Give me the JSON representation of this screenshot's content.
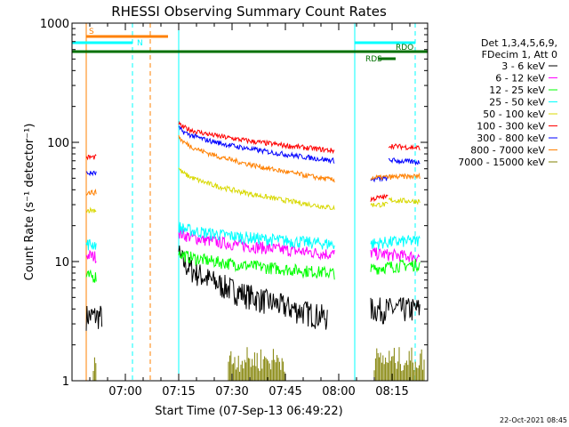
{
  "chart_data": {
    "type": "line",
    "title": "RHESSI Observing Summary Count Rates",
    "xlabel": "Start Time (07-Sep-13 06:49:22)",
    "ylabel": "Count Rate (s⁻¹ detector⁻¹)",
    "y_scale": "log",
    "ylim": [
      1,
      1000
    ],
    "xlim_minutes_after_0649": [
      -4,
      96
    ],
    "y_ticks": [
      {
        "value": 1,
        "label": "1"
      },
      {
        "value": 10,
        "label": "10"
      },
      {
        "value": 100,
        "label": "100"
      },
      {
        "value": 1000,
        "label": "1000"
      }
    ],
    "x_ticks": [
      {
        "value": 11,
        "label": "07:00"
      },
      {
        "value": 26,
        "label": "07:15"
      },
      {
        "value": 41,
        "label": "07:30"
      },
      {
        "value": 56,
        "label": "07:45"
      },
      {
        "value": 71,
        "label": "08:00"
      },
      {
        "value": 86,
        "label": "08:15"
      }
    ],
    "legend_header": [
      "Det 1,3,4,5,6,9,",
      "FDecim 1, Att 0"
    ],
    "legend_position": "right",
    "series": [
      {
        "name": "3 - 6 keV",
        "color": "#000000",
        "noise": 0.25,
        "segments": [
          [
            0,
            3.5,
            3.5,
            4.5
          ],
          [
            26,
            12,
            3.4,
            68
          ],
          [
            80,
            4,
            4,
            94
          ]
        ]
      },
      {
        "name": "6 - 12 keV",
        "color": "#ff00ff",
        "noise": 0.12,
        "segments": [
          [
            0,
            11.5,
            11,
            3
          ],
          [
            26,
            18,
            11.5,
            70
          ],
          [
            80,
            12,
            11,
            94
          ]
        ]
      },
      {
        "name": "12 - 25 keV",
        "color": "#00ff00",
        "noise": 0.12,
        "segments": [
          [
            0,
            7.5,
            7.5,
            3
          ],
          [
            26,
            12,
            8,
            70
          ],
          [
            80,
            8.5,
            9.5,
            94
          ]
        ]
      },
      {
        "name": "25 - 50 keV",
        "color": "#00ffff",
        "noise": 0.12,
        "segments": [
          [
            0,
            14,
            14,
            3
          ],
          [
            26,
            20,
            14,
            70
          ],
          [
            80,
            14,
            15,
            94
          ]
        ]
      },
      {
        "name": "50 - 100 keV",
        "color": "#d8d800",
        "noise": 0.05,
        "segments": [
          [
            0,
            27,
            27,
            3
          ],
          [
            26,
            62,
            28,
            70
          ],
          [
            80,
            30,
            30,
            85
          ],
          [
            85,
            33,
            32,
            94
          ]
        ]
      },
      {
        "name": "100 - 300 keV",
        "color": "#ff0000",
        "noise": 0.05,
        "segments": [
          [
            0,
            75,
            75,
            3
          ],
          [
            26,
            145,
            85,
            70
          ],
          [
            80,
            33,
            35,
            85
          ],
          [
            85,
            95,
            90,
            94
          ]
        ]
      },
      {
        "name": "300 - 800 keV",
        "color": "#0000ff",
        "noise": 0.05,
        "segments": [
          [
            0,
            55,
            55,
            3
          ],
          [
            26,
            135,
            70,
            70
          ],
          [
            80,
            48,
            50,
            85
          ],
          [
            85,
            72,
            68,
            94
          ]
        ]
      },
      {
        "name": "800 - 7000 keV",
        "color": "#ff8000",
        "noise": 0.05,
        "segments": [
          [
            0,
            38,
            38,
            3
          ],
          [
            26,
            115,
            48,
            70
          ],
          [
            80,
            50,
            52,
            94
          ]
        ]
      },
      {
        "name": "7000 - 15000 keV",
        "color": "#808000",
        "noise": 0,
        "segments": []
      }
    ],
    "markers": [
      {
        "label": "S",
        "color": "#ff8000",
        "start": 0,
        "end": 23,
        "line_style": "solid",
        "end_style": "dashed"
      },
      {
        "label": "N",
        "color": "#00ffff",
        "start": 13,
        "end": 18,
        "line_style": "dashed"
      },
      {
        "label": "RDO",
        "color": "#007000",
        "start": -4,
        "end": 96
      },
      {
        "label": "RDS",
        "color": "#007000",
        "start": 82,
        "end": 87
      }
    ]
  },
  "footer": {
    "timestamp": "22-Oct-2021 08:45"
  }
}
